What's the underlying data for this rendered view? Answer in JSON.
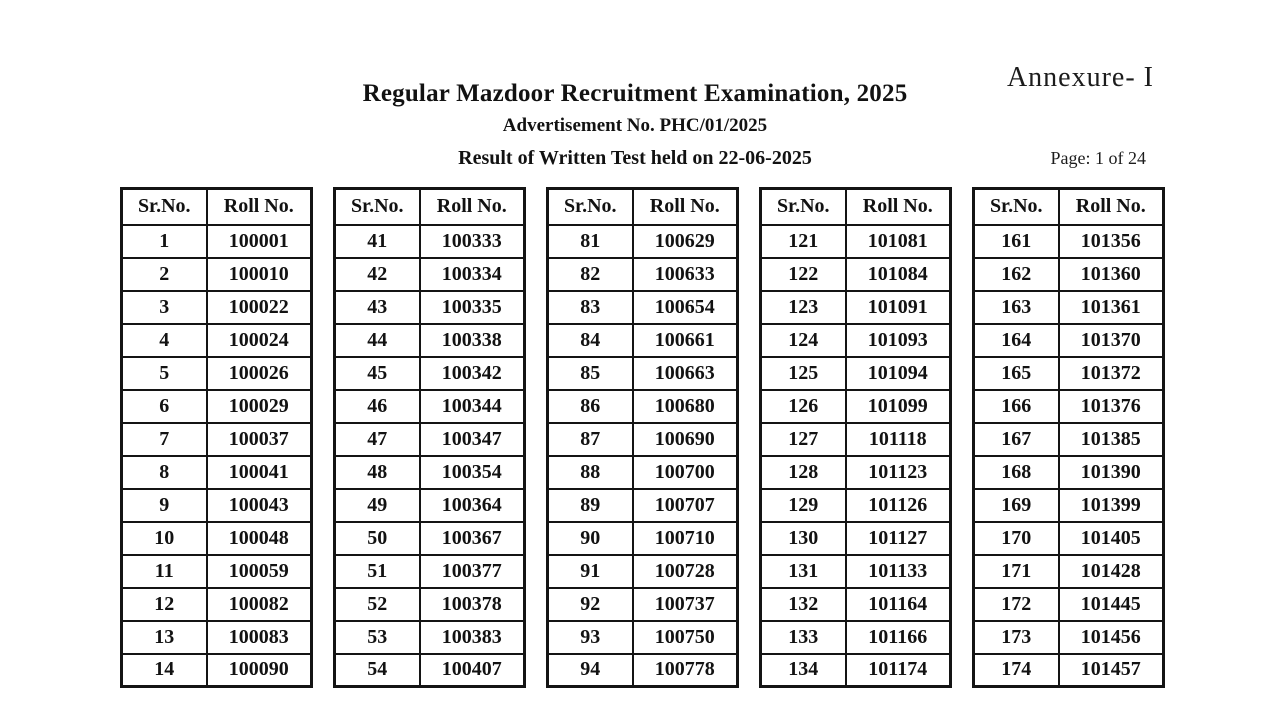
{
  "page": {
    "annexure": "Annexure- I",
    "title": "Regular Mazdoor Recruitment Examination, 2025",
    "advertisement": "Advertisement No. PHC/01/2025",
    "result_line": "Result of Written Test held on 22-06-2025",
    "page_label": "Page: 1 of 24"
  },
  "table_headers": [
    "Sr.No.",
    "Roll No."
  ],
  "tables": [
    {
      "rows": [
        [
          "1",
          "100001"
        ],
        [
          "2",
          "100010"
        ],
        [
          "3",
          "100022"
        ],
        [
          "4",
          "100024"
        ],
        [
          "5",
          "100026"
        ],
        [
          "6",
          "100029"
        ],
        [
          "7",
          "100037"
        ],
        [
          "8",
          "100041"
        ],
        [
          "9",
          "100043"
        ],
        [
          "10",
          "100048"
        ],
        [
          "11",
          "100059"
        ],
        [
          "12",
          "100082"
        ],
        [
          "13",
          "100083"
        ],
        [
          "14",
          "100090"
        ]
      ]
    },
    {
      "rows": [
        [
          "41",
          "100333"
        ],
        [
          "42",
          "100334"
        ],
        [
          "43",
          "100335"
        ],
        [
          "44",
          "100338"
        ],
        [
          "45",
          "100342"
        ],
        [
          "46",
          "100344"
        ],
        [
          "47",
          "100347"
        ],
        [
          "48",
          "100354"
        ],
        [
          "49",
          "100364"
        ],
        [
          "50",
          "100367"
        ],
        [
          "51",
          "100377"
        ],
        [
          "52",
          "100378"
        ],
        [
          "53",
          "100383"
        ],
        [
          "54",
          "100407"
        ]
      ]
    },
    {
      "rows": [
        [
          "81",
          "100629"
        ],
        [
          "82",
          "100633"
        ],
        [
          "83",
          "100654"
        ],
        [
          "84",
          "100661"
        ],
        [
          "85",
          "100663"
        ],
        [
          "86",
          "100680"
        ],
        [
          "87",
          "100690"
        ],
        [
          "88",
          "100700"
        ],
        [
          "89",
          "100707"
        ],
        [
          "90",
          "100710"
        ],
        [
          "91",
          "100728"
        ],
        [
          "92",
          "100737"
        ],
        [
          "93",
          "100750"
        ],
        [
          "94",
          "100778"
        ]
      ]
    },
    {
      "rows": [
        [
          "121",
          "101081"
        ],
        [
          "122",
          "101084"
        ],
        [
          "123",
          "101091"
        ],
        [
          "124",
          "101093"
        ],
        [
          "125",
          "101094"
        ],
        [
          "126",
          "101099"
        ],
        [
          "127",
          "101118"
        ],
        [
          "128",
          "101123"
        ],
        [
          "129",
          "101126"
        ],
        [
          "130",
          "101127"
        ],
        [
          "131",
          "101133"
        ],
        [
          "132",
          "101164"
        ],
        [
          "133",
          "101166"
        ],
        [
          "134",
          "101174"
        ]
      ]
    },
    {
      "rows": [
        [
          "161",
          "101356"
        ],
        [
          "162",
          "101360"
        ],
        [
          "163",
          "101361"
        ],
        [
          "164",
          "101370"
        ],
        [
          "165",
          "101372"
        ],
        [
          "166",
          "101376"
        ],
        [
          "167",
          "101385"
        ],
        [
          "168",
          "101390"
        ],
        [
          "169",
          "101399"
        ],
        [
          "170",
          "101405"
        ],
        [
          "171",
          "101428"
        ],
        [
          "172",
          "101445"
        ],
        [
          "173",
          "101456"
        ],
        [
          "174",
          "101457"
        ]
      ]
    }
  ],
  "colors": {
    "text": "#121212",
    "border": "#141414",
    "background": "#ffffff"
  }
}
